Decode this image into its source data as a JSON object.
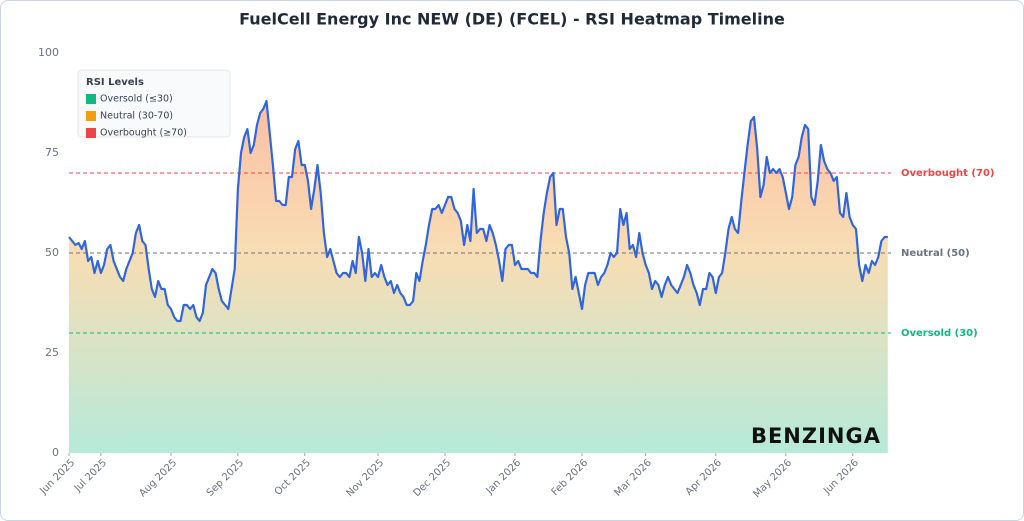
{
  "chart_data": {
    "type": "line",
    "title": "FuelCell Energy Inc NEW (DE) (FCEL) - RSI Heatmap Timeline",
    "series": [
      {
        "name": "RSI",
        "color": "#2f66e0",
        "values": [
          54,
          53,
          52,
          52.5,
          51,
          53,
          48,
          49,
          45,
          48,
          45,
          47,
          51,
          52,
          48,
          46,
          44,
          43,
          46,
          48,
          50,
          55,
          57,
          53,
          52,
          46,
          41,
          39,
          43,
          41,
          41,
          37,
          36,
          34,
          33,
          33,
          37,
          37,
          36,
          37,
          34,
          33,
          35,
          42,
          44,
          46,
          45,
          41,
          38,
          37,
          36,
          41,
          46,
          66,
          75,
          79,
          81,
          75,
          77,
          82,
          85,
          86,
          88,
          80,
          72,
          63,
          63,
          62,
          62,
          69,
          69,
          76,
          78,
          72,
          72,
          68,
          61,
          66,
          72,
          65,
          55,
          49,
          51,
          48,
          45,
          44,
          45,
          45,
          44,
          48,
          45,
          54,
          50,
          43,
          51,
          44,
          45,
          44,
          47,
          44,
          42,
          43,
          40,
          42,
          40,
          39,
          37,
          37,
          38,
          45,
          43,
          48,
          52,
          57,
          61,
          61,
          62,
          60,
          62,
          64,
          64,
          61,
          60,
          58,
          52,
          57,
          53,
          66,
          55,
          56,
          56,
          53,
          57,
          55,
          52,
          48,
          43,
          51,
          52,
          52,
          47,
          48,
          46,
          46,
          46,
          45,
          45,
          44,
          53,
          60,
          65,
          69,
          70,
          57,
          61,
          61,
          54,
          50,
          41,
          44,
          40,
          36,
          42,
          45,
          45,
          45,
          42,
          44,
          45,
          47,
          50,
          49,
          50,
          61,
          57,
          60,
          51,
          52,
          49,
          55,
          50,
          47,
          45,
          41,
          43,
          42,
          39,
          42,
          44,
          42,
          41,
          40,
          42,
          44,
          47,
          45,
          42,
          40,
          37,
          41,
          41,
          45,
          44,
          40,
          44,
          45,
          50,
          56,
          59,
          56,
          55,
          63,
          70,
          77,
          83,
          84,
          76,
          64,
          67,
          74,
          70,
          71,
          70,
          71,
          69,
          65,
          61,
          64,
          72,
          74,
          79,
          82,
          81,
          64,
          62,
          68,
          77,
          73,
          71,
          70,
          68,
          69,
          60,
          59,
          65,
          59,
          57,
          56,
          47,
          43,
          47,
          45,
          48,
          47,
          49,
          53,
          54,
          54
        ]
      }
    ],
    "xlim": [
      0,
      258
    ],
    "xticks": [
      {
        "value": 0,
        "label": "Jun 2025"
      },
      {
        "value": 10,
        "label": "Jul 2025"
      },
      {
        "value": 32,
        "label": "Aug 2025"
      },
      {
        "value": 53,
        "label": "Sep 2025"
      },
      {
        "value": 74,
        "label": "Oct 2025"
      },
      {
        "value": 97,
        "label": "Nov 2025"
      },
      {
        "value": 118,
        "label": "Dec 2025"
      },
      {
        "value": 140,
        "label": "Jan 2026"
      },
      {
        "value": 161,
        "label": "Feb 2026"
      },
      {
        "value": 181,
        "label": "Mar 2026"
      },
      {
        "value": 203,
        "label": "Apr 2026"
      },
      {
        "value": 225,
        "label": "May 2026"
      },
      {
        "value": 246,
        "label": "Jun 2026"
      }
    ],
    "ylim": [
      0,
      100
    ],
    "yticks": [
      0,
      25,
      50,
      75,
      100
    ],
    "reference_lines": [
      {
        "value": 70,
        "label": "Overbought (70)",
        "color": "#ef4444"
      },
      {
        "value": 50,
        "label": "Neutral (50)",
        "color": "#6b7280"
      },
      {
        "value": 30,
        "label": "Oversold (30)",
        "color": "#10b981"
      }
    ],
    "legend": {
      "title": "RSI Levels",
      "entries": [
        {
          "name": "Oversold (≤30)",
          "color": "#10b981"
        },
        {
          "name": "Neutral (30-70)",
          "color": "#f59e0b"
        },
        {
          "name": "Overbought (≥70)",
          "color": "#ef4444"
        }
      ]
    },
    "watermark": "BENZINGA"
  }
}
